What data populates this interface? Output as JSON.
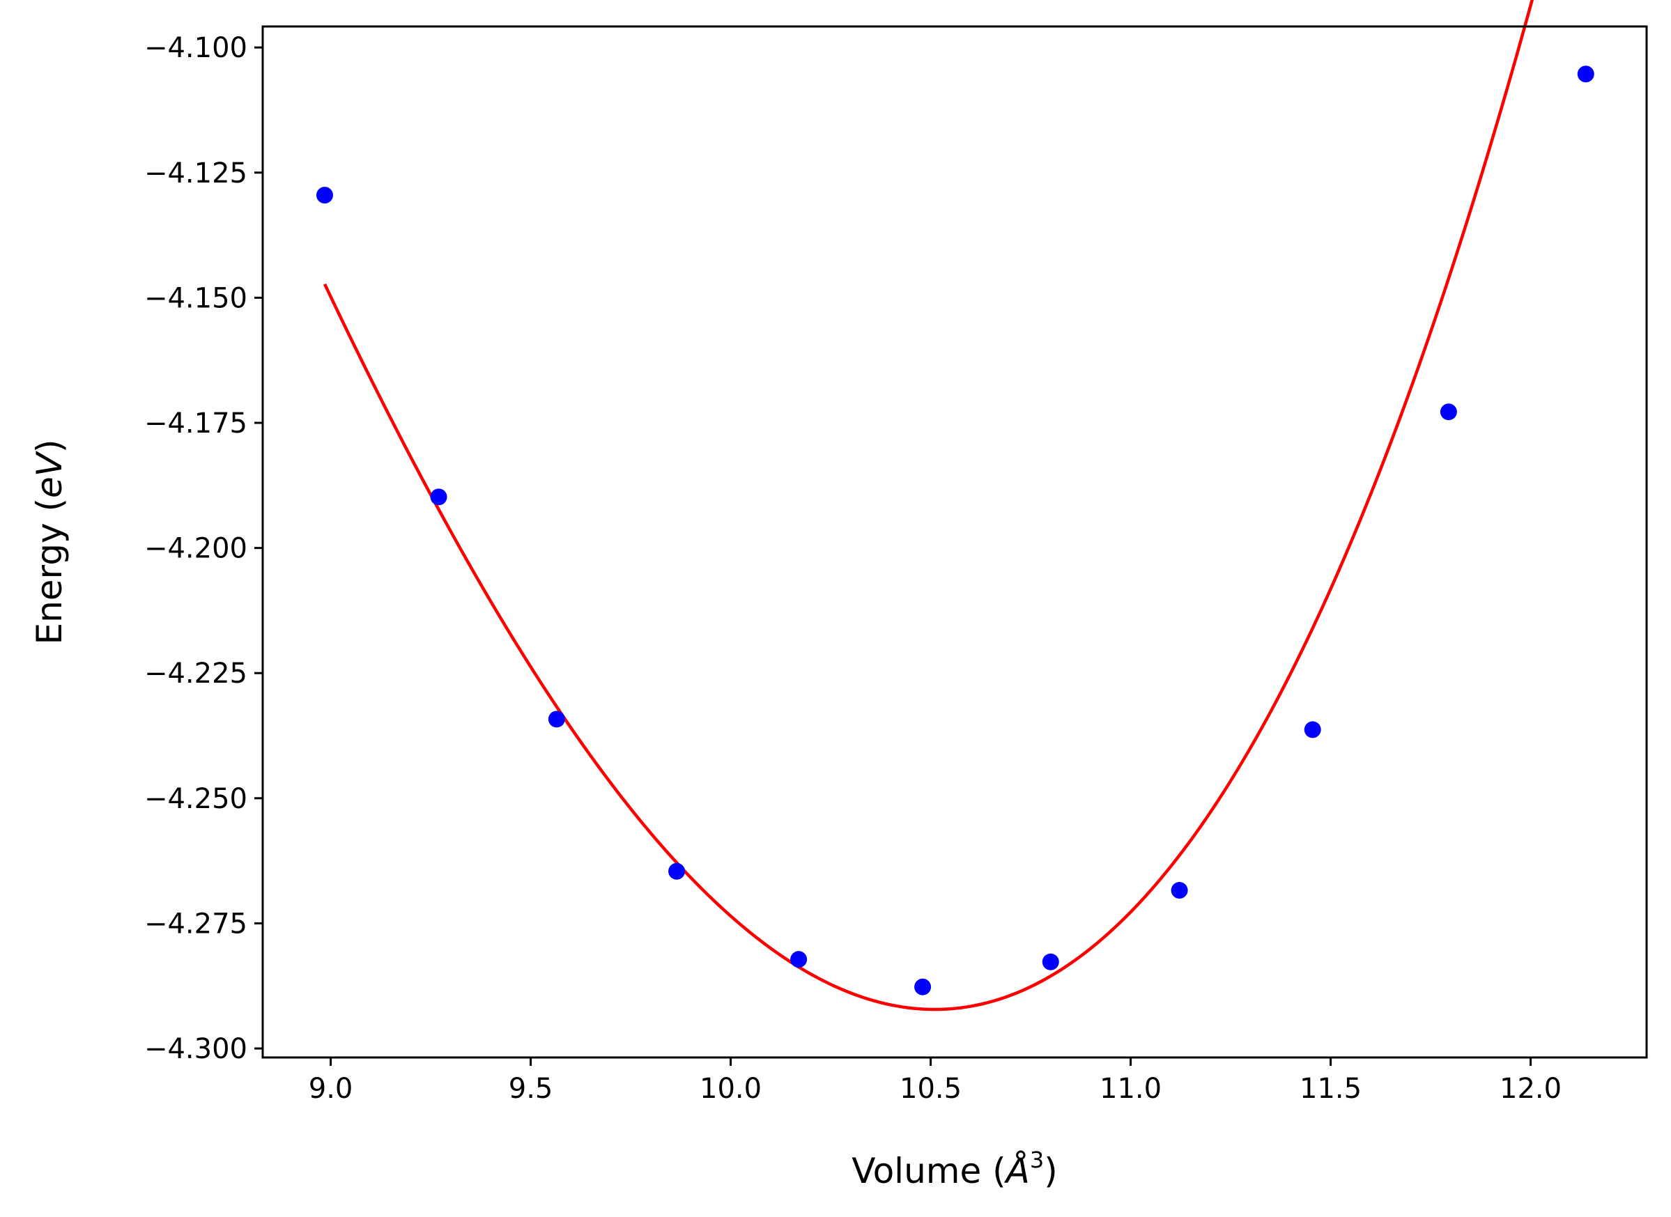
{
  "chart_data": {
    "type": "scatter",
    "title": "",
    "xlabel": {
      "pre": "Volume (",
      "symbol": "Å",
      "sup": "3",
      "post": ")"
    },
    "ylabel": {
      "pre": "Energy (",
      "italic": "eV",
      "post": ")"
    },
    "xlim": [
      8.83,
      12.29
    ],
    "ylim": [
      -4.3018,
      -4.0958
    ],
    "xticks": [
      9.0,
      9.5,
      10.0,
      10.5,
      11.0,
      11.5,
      12.0
    ],
    "xtick_labels": [
      "9.0",
      "9.5",
      "10.0",
      "10.5",
      "11.0",
      "11.5",
      "12.0"
    ],
    "yticks": [
      -4.1,
      -4.125,
      -4.15,
      -4.175,
      -4.2,
      -4.225,
      -4.25,
      -4.275,
      -4.3
    ],
    "ytick_labels": [
      "−4.100",
      "−4.125",
      "−4.150",
      "−4.175",
      "−4.200",
      "−4.225",
      "−4.250",
      "−4.275",
      "−4.300"
    ],
    "grid": false,
    "series": [
      {
        "kind": "scatter",
        "color": "#0000ff",
        "x": [
          8.985,
          9.27,
          9.565,
          9.865,
          10.17,
          10.48,
          10.8,
          11.122,
          11.455,
          11.795,
          12.138
        ],
        "y": [
          -4.1295,
          -4.1898,
          -4.2342,
          -4.2646,
          -4.2822,
          -4.2877,
          -4.2827,
          -4.2684,
          -4.2363,
          -4.1728,
          -4.1053
        ]
      },
      {
        "kind": "line",
        "color": "#ff0000",
        "fit": {
          "v0": 10.51,
          "e0": -4.2922,
          "a": 0.0765,
          "b": 0.0093
        },
        "x_range": [
          8.985,
          12.138
        ]
      }
    ]
  }
}
